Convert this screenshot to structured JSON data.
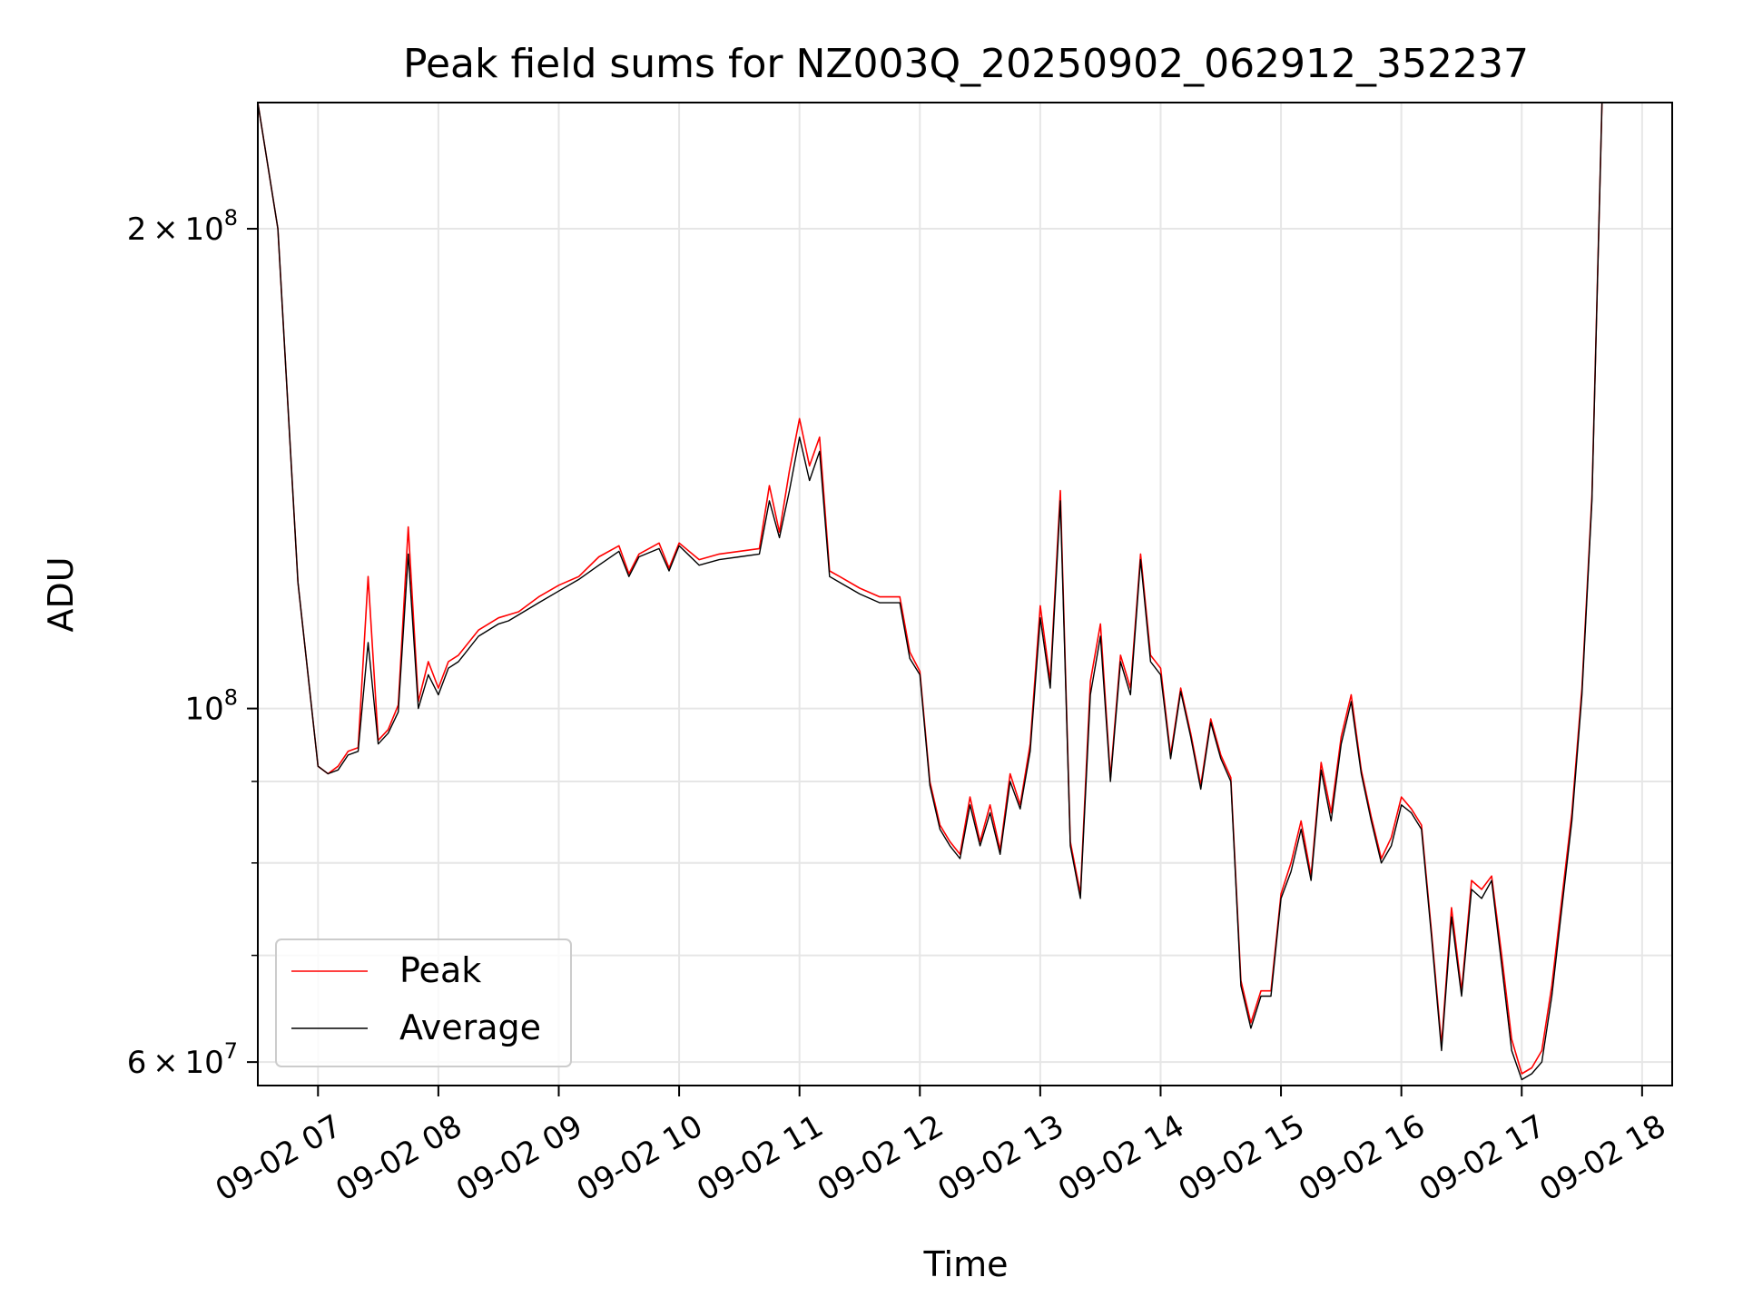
{
  "chart_data": {
    "type": "line",
    "title": "Peak field sums for NZ003Q_20250902_062912_352237",
    "xlabel": "Time",
    "ylabel": "ADU",
    "y_scale": "log",
    "xlim": [
      "2025-09-02 06:30",
      "2025-09-02 18:15"
    ],
    "ylim": [
      58000000,
      240000000
    ],
    "x_ticks": [
      "09-02 07",
      "09-02 08",
      "09-02 09",
      "09-02 10",
      "09-02 11",
      "09-02 12",
      "09-02 13",
      "09-02 14",
      "09-02 15",
      "09-02 16",
      "09-02 17",
      "09-02 18"
    ],
    "y_ticks": [
      {
        "value": 200000000,
        "label_base": "2 × 10",
        "label_exp": "8"
      },
      {
        "value": 100000000,
        "label_base": "10",
        "label_exp": "8"
      },
      {
        "value": 60000000,
        "label_base": "6 × 10",
        "label_exp": "7"
      }
    ],
    "minor_y_gridlines": [
      70000000,
      80000000,
      90000000
    ],
    "grid": true,
    "legend_position": "lower-left",
    "series": [
      {
        "name": "Peak",
        "color": "#ff0000"
      },
      {
        "name": "Average",
        "color": "#000000"
      }
    ],
    "x": [
      "06:30",
      "06:40",
      "06:50",
      "07:00",
      "07:05",
      "07:10",
      "07:15",
      "07:20",
      "07:25",
      "07:30",
      "07:35",
      "07:40",
      "07:45",
      "07:50",
      "07:55",
      "08:00",
      "08:05",
      "08:10",
      "08:20",
      "08:30",
      "08:35",
      "08:40",
      "08:50",
      "09:00",
      "09:10",
      "09:20",
      "09:30",
      "09:35",
      "09:40",
      "09:50",
      "09:55",
      "10:00",
      "10:10",
      "10:20",
      "10:30",
      "10:40",
      "10:45",
      "10:50",
      "10:55",
      "11:00",
      "11:05",
      "11:10",
      "11:15",
      "11:20",
      "11:30",
      "11:40",
      "11:50",
      "11:55",
      "12:00",
      "12:05",
      "12:10",
      "12:15",
      "12:20",
      "12:25",
      "12:30",
      "12:35",
      "12:40",
      "12:45",
      "12:50",
      "12:55",
      "13:00",
      "13:05",
      "13:10",
      "13:15",
      "13:20",
      "13:25",
      "13:30",
      "13:35",
      "13:40",
      "13:45",
      "13:50",
      "13:55",
      "14:00",
      "14:05",
      "14:10",
      "14:15",
      "14:20",
      "14:25",
      "14:30",
      "14:35",
      "14:40",
      "14:45",
      "14:50",
      "14:55",
      "15:00",
      "15:05",
      "15:10",
      "15:15",
      "15:20",
      "15:25",
      "15:30",
      "15:35",
      "15:40",
      "15:45",
      "15:50",
      "15:55",
      "16:00",
      "16:05",
      "16:10",
      "16:15",
      "16:20",
      "16:25",
      "16:30",
      "16:35",
      "16:40",
      "16:45",
      "16:50",
      "16:55",
      "17:00",
      "17:05",
      "17:10",
      "17:15",
      "17:20",
      "17:25",
      "17:30",
      "17:35",
      "17:40",
      "17:45",
      "17:50",
      "17:55",
      "18:00",
      "18:05"
    ],
    "average_values": [
      240000000,
      200000000,
      120000000,
      92000000,
      91000000,
      91500000,
      93500000,
      94000000,
      110000000,
      95000000,
      96500000,
      99500000,
      125000000,
      100000000,
      105000000,
      102000000,
      106000000,
      107000000,
      111000000,
      113000000,
      113500000,
      114500000,
      116500000,
      118500000,
      120500000,
      123000000,
      125500000,
      121000000,
      124500000,
      126000000,
      122000000,
      126500000,
      123000000,
      124000000,
      124500000,
      125000000,
      135000000,
      128000000,
      137000000,
      148000000,
      139000000,
      145000000,
      121000000,
      120000000,
      118000000,
      116500000,
      116500000,
      107500000,
      105000000,
      89500000,
      84000000,
      82000000,
      80500000,
      87000000,
      82000000,
      86000000,
      81000000,
      90000000,
      86500000,
      94000000,
      114000000,
      103000000,
      135000000,
      82000000,
      76000000,
      102000000,
      111000000,
      90000000,
      107000000,
      102000000,
      124000000,
      107000000,
      105000000,
      93000000,
      102500000,
      96000000,
      89000000,
      98000000,
      93000000,
      90000000,
      67000000,
      63000000,
      66000000,
      66000000,
      76000000,
      79000000,
      84000000,
      78000000,
      91500000,
      85000000,
      95000000,
      101000000,
      91000000,
      85000000,
      80000000,
      82000000,
      87000000,
      86000000,
      84000000,
      72000000,
      61000000,
      74000000,
      66000000,
      77000000,
      76000000,
      78000000,
      69000000,
      61000000,
      58500000,
      59000000,
      60000000,
      66000000,
      75000000,
      85000000,
      102000000,
      135000000,
      240000000,
      240000000,
      240000000,
      240000000
    ],
    "peak_values": [
      240000000,
      200000000,
      120000000,
      92000000,
      91000000,
      92000000,
      94000000,
      94500000,
      121000000,
      95500000,
      97000000,
      100500000,
      130000000,
      101000000,
      107000000,
      103000000,
      107000000,
      108000000,
      112000000,
      114000000,
      114500000,
      115000000,
      117500000,
      119500000,
      121000000,
      124500000,
      126500000,
      121500000,
      125000000,
      127000000,
      122500000,
      127000000,
      124000000,
      125000000,
      125500000,
      126000000,
      138000000,
      129000000,
      141000000,
      152000000,
      142000000,
      148000000,
      122000000,
      121000000,
      119000000,
      117500000,
      117500000,
      108500000,
      105500000,
      90000000,
      84500000,
      82500000,
      81000000,
      88000000,
      82500000,
      87000000,
      81500000,
      91000000,
      87000000,
      95000000,
      116000000,
      104000000,
      137000000,
      82500000,
      76500000,
      104000000,
      113000000,
      90500000,
      108000000,
      103000000,
      125000000,
      108000000,
      106000000,
      93500000,
      103000000,
      96500000,
      89500000,
      98500000,
      93500000,
      90500000,
      67500000,
      63500000,
      66500000,
      66500000,
      76500000,
      80000000,
      85000000,
      78500000,
      92500000,
      86000000,
      96000000,
      102000000,
      91500000,
      85500000,
      80500000,
      83000000,
      88000000,
      86500000,
      84500000,
      72500000,
      61500000,
      75000000,
      66500000,
      78000000,
      77000000,
      78500000,
      70000000,
      62000000,
      59000000,
      59500000,
      61000000,
      67000000,
      76000000,
      86000000,
      103000000,
      136000000,
      240000000,
      240000000,
      240000000,
      240000000
    ]
  }
}
